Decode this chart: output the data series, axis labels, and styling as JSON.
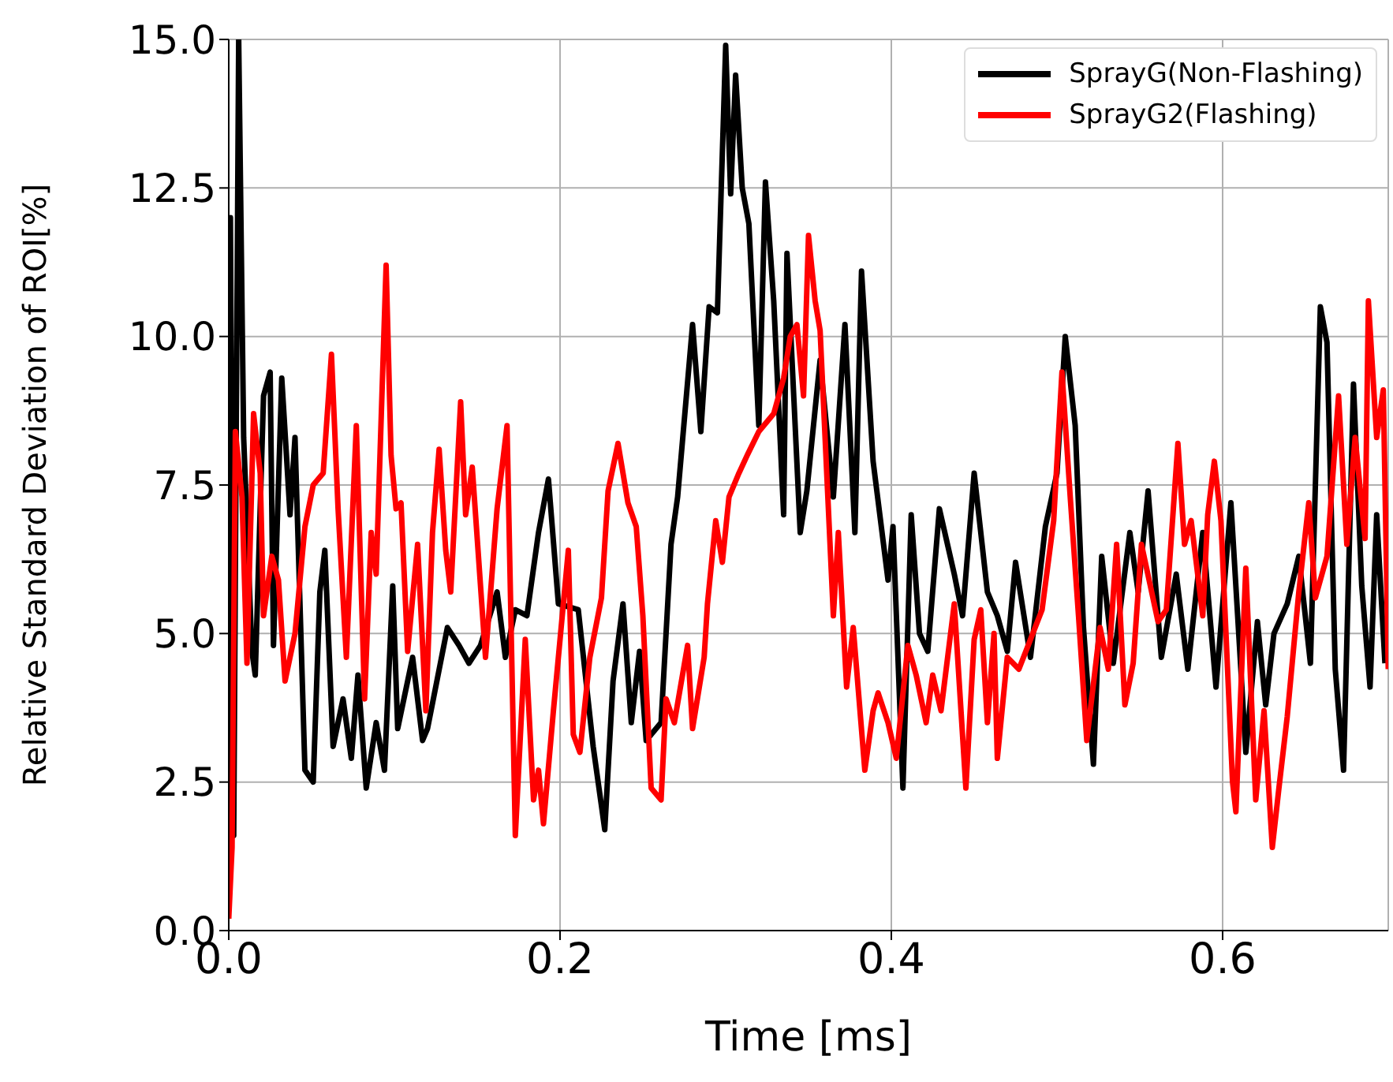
{
  "chart_data": {
    "type": "line",
    "xlabel": "Time [ms]",
    "ylabel": "Relative Standard Deviation of ROI[%]",
    "xlim": [
      0,
      0.7
    ],
    "ylim": [
      0,
      15
    ],
    "xticks": [
      {
        "value": 0,
        "label": "0.0"
      },
      {
        "value": 0.2,
        "label": "0.2"
      },
      {
        "value": 0.4,
        "label": "0.4"
      },
      {
        "value": 0.6,
        "label": "0.6"
      }
    ],
    "yticks": [
      {
        "value": 0,
        "label": "0.0"
      },
      {
        "value": 2.5,
        "label": "2.5"
      },
      {
        "value": 5,
        "label": "5.0"
      },
      {
        "value": 7.5,
        "label": "7.5"
      },
      {
        "value": 10,
        "label": "10.0"
      },
      {
        "value": 12.5,
        "label": "12.5"
      },
      {
        "value": 15,
        "label": "15.0"
      }
    ],
    "grid": true,
    "legend": "top right",
    "marker": "none",
    "line_style": "solid",
    "series": [
      {
        "name": "SprayG(Non-Flashing)",
        "color": "#000000",
        "x": [
          0,
          0.001,
          0.003,
          0.006,
          0.009,
          0.014,
          0.016,
          0.021,
          0.025,
          0.027,
          0.032,
          0.037,
          0.04,
          0.046,
          0.051,
          0.055,
          0.058,
          0.063,
          0.069,
          0.074,
          0.078,
          0.083,
          0.089,
          0.094,
          0.099,
          0.102,
          0.111,
          0.117,
          0.12,
          0.132,
          0.139,
          0.145,
          0.152,
          0.162,
          0.167,
          0.173,
          0.18,
          0.187,
          0.193,
          0.199,
          0.211,
          0.22,
          0.227,
          0.232,
          0.238,
          0.243,
          0.248,
          0.252,
          0.261,
          0.267,
          0.271,
          0.28,
          0.285,
          0.29,
          0.295,
          0.3,
          0.303,
          0.306,
          0.31,
          0.314,
          0.32,
          0.324,
          0.329,
          0.335,
          0.337,
          0.345,
          0.349,
          0.357,
          0.365,
          0.372,
          0.378,
          0.382,
          0.389,
          0.398,
          0.401,
          0.407,
          0.412,
          0.417,
          0.422,
          0.429,
          0.438,
          0.443,
          0.45,
          0.458,
          0.464,
          0.47,
          0.475,
          0.484,
          0.493,
          0.5,
          0.505,
          0.511,
          0.516,
          0.522,
          0.527,
          0.534,
          0.544,
          0.549,
          0.555,
          0.563,
          0.572,
          0.579,
          0.588,
          0.596,
          0.605,
          0.614,
          0.621,
          0.626,
          0.631,
          0.639,
          0.646,
          0.653,
          0.659,
          0.663,
          0.668,
          0.673,
          0.679,
          0.684,
          0.689,
          0.693,
          0.698
        ],
        "values": [
          0.5,
          12.0,
          1.6,
          15.0,
          8.3,
          4.7,
          4.3,
          9.0,
          9.4,
          4.8,
          9.3,
          7.0,
          8.3,
          2.7,
          2.5,
          5.7,
          6.4,
          3.1,
          3.9,
          2.9,
          4.3,
          2.4,
          3.5,
          2.7,
          5.8,
          3.4,
          4.6,
          3.2,
          3.4,
          5.1,
          4.8,
          4.5,
          4.8,
          5.7,
          4.6,
          5.4,
          5.3,
          6.7,
          7.6,
          5.5,
          5.4,
          3.1,
          1.7,
          4.2,
          5.5,
          3.5,
          4.7,
          3.2,
          3.5,
          6.5,
          7.3,
          10.2,
          8.4,
          10.5,
          10.4,
          14.9,
          12.4,
          14.4,
          12.5,
          11.9,
          8.5,
          12.6,
          10.6,
          7.0,
          11.4,
          6.7,
          7.4,
          9.6,
          7.3,
          10.2,
          6.7,
          11.1,
          7.9,
          5.9,
          6.8,
          2.4,
          7.0,
          5.0,
          4.7,
          7.1,
          6.0,
          5.3,
          7.7,
          5.7,
          5.3,
          4.7,
          6.2,
          4.6,
          6.8,
          7.7,
          10.0,
          8.5,
          5.1,
          2.8,
          6.3,
          4.5,
          6.7,
          5.7,
          7.4,
          4.6,
          6.0,
          4.4,
          6.7,
          4.1,
          7.2,
          3.0,
          5.2,
          3.8,
          5.0,
          5.5,
          6.3,
          4.5,
          10.5,
          9.9,
          4.4,
          2.7,
          9.2,
          5.8,
          4.1,
          7.0,
          4.5
        ]
      },
      {
        "name": "SprayG2(Flashing)",
        "color": "#ff0000",
        "x": [
          0,
          0.002,
          0.004,
          0.008,
          0.011,
          0.015,
          0.019,
          0.021,
          0.026,
          0.03,
          0.034,
          0.04,
          0.046,
          0.051,
          0.057,
          0.062,
          0.066,
          0.071,
          0.077,
          0.082,
          0.086,
          0.089,
          0.095,
          0.098,
          0.101,
          0.104,
          0.108,
          0.114,
          0.119,
          0.123,
          0.127,
          0.131,
          0.134,
          0.14,
          0.143,
          0.147,
          0.155,
          0.162,
          0.168,
          0.173,
          0.179,
          0.184,
          0.187,
          0.19,
          0.196,
          0.205,
          0.208,
          0.212,
          0.218,
          0.225,
          0.229,
          0.235,
          0.241,
          0.246,
          0.25,
          0.255,
          0.261,
          0.264,
          0.269,
          0.277,
          0.28,
          0.287,
          0.289,
          0.294,
          0.298,
          0.302,
          0.308,
          0.313,
          0.32,
          0.329,
          0.335,
          0.339,
          0.343,
          0.347,
          0.35,
          0.354,
          0.357,
          0.365,
          0.368,
          0.373,
          0.377,
          0.384,
          0.389,
          0.392,
          0.398,
          0.403,
          0.41,
          0.415,
          0.421,
          0.425,
          0.43,
          0.438,
          0.445,
          0.45,
          0.454,
          0.458,
          0.462,
          0.464,
          0.47,
          0.477,
          0.484,
          0.491,
          0.498,
          0.503,
          0.508,
          0.513,
          0.518,
          0.526,
          0.531,
          0.536,
          0.541,
          0.546,
          0.551,
          0.561,
          0.566,
          0.573,
          0.577,
          0.581,
          0.588,
          0.591,
          0.595,
          0.599,
          0.606,
          0.608,
          0.614,
          0.62,
          0.625,
          0.63,
          0.634,
          0.639,
          0.646,
          0.652,
          0.656,
          0.663,
          0.67,
          0.675,
          0.68,
          0.686,
          0.688,
          0.693,
          0.697,
          0.7
        ],
        "values": [
          0.2,
          1.4,
          8.4,
          7.3,
          4.5,
          8.7,
          7.7,
          5.3,
          6.3,
          5.9,
          4.2,
          5.0,
          6.8,
          7.5,
          7.7,
          9.7,
          7.1,
          4.6,
          8.5,
          3.9,
          6.7,
          6.0,
          11.2,
          8.0,
          7.1,
          7.2,
          4.7,
          6.5,
          3.7,
          6.7,
          8.1,
          6.4,
          5.7,
          8.9,
          7.0,
          7.8,
          4.6,
          7.1,
          8.5,
          1.6,
          4.9,
          2.2,
          2.7,
          1.8,
          3.7,
          6.4,
          3.3,
          3.0,
          4.6,
          5.6,
          7.4,
          8.2,
          7.2,
          6.8,
          5.3,
          2.4,
          2.2,
          3.9,
          3.5,
          4.8,
          3.4,
          4.6,
          5.5,
          6.9,
          6.2,
          7.3,
          7.7,
          8.0,
          8.4,
          8.7,
          9.3,
          10.0,
          10.2,
          9.0,
          11.7,
          10.6,
          10.1,
          5.3,
          6.7,
          4.1,
          5.1,
          2.7,
          3.7,
          4.0,
          3.5,
          2.9,
          4.8,
          4.3,
          3.5,
          4.3,
          3.7,
          5.5,
          2.4,
          4.9,
          5.4,
          3.5,
          5.0,
          2.9,
          4.6,
          4.4,
          4.9,
          5.4,
          6.9,
          9.4,
          7.3,
          5.3,
          3.2,
          5.1,
          4.4,
          6.5,
          3.8,
          4.5,
          6.5,
          5.2,
          5.4,
          8.2,
          6.5,
          6.9,
          5.3,
          7.0,
          7.9,
          6.9,
          2.5,
          2.0,
          6.1,
          2.2,
          3.7,
          1.4,
          2.4,
          3.6,
          5.7,
          7.2,
          5.6,
          6.3,
          9.0,
          6.5,
          8.3,
          6.6,
          10.6,
          8.3,
          9.1,
          4.4
        ]
      }
    ]
  }
}
